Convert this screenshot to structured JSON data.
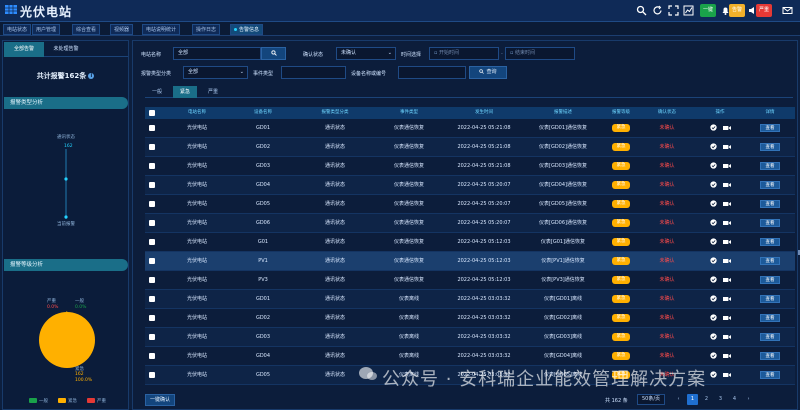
{
  "app": {
    "title": "光伏电站"
  },
  "top_buttons": {
    "b1": "一键",
    "b2": "告警",
    "b3": "严重"
  },
  "nav_tabs": [
    "电站状态",
    "用户管理",
    "综合查看",
    "视频器",
    "电站说明统计",
    "操作日志",
    "告警信息"
  ],
  "left": {
    "tabs": [
      "全部告警",
      "未处理告警"
    ],
    "total": "共计报警162条",
    "section1": "报警类型分析",
    "node_top": "通讯状态",
    "node_val": "162",
    "node_bottom": "当前报警",
    "section2": "报警等级分析",
    "pie_labels": {
      "top_left": "严重",
      "top_left_val": "0.0%",
      "top_right": "一般",
      "top_right_val": "0.0%",
      "bottom": "紧急",
      "bottom_val": "162",
      "bottom_pct": "100.0%"
    },
    "legend": [
      "一般",
      "紧急",
      "严重"
    ]
  },
  "filters": {
    "station_label": "电站名称",
    "station_value": "全部",
    "confirm_label": "确认状态",
    "confirm_value": "未确认",
    "time_label": "时间选择",
    "start_ph": "开始时间",
    "end_ph": "结束时间",
    "type_label": "报警类型分类",
    "type_value": "全部",
    "event_label": "事件类型",
    "device_label": "设备名称或编号",
    "query": "查询"
  },
  "subtabs": [
    "一般",
    "紧急",
    "严重"
  ],
  "table": {
    "headers": [
      "电站名称",
      "设备名称",
      "报警类型分类",
      "事件类型",
      "发生时间",
      "报警描述",
      "报警等级",
      "确认状态",
      "操作",
      "详情"
    ],
    "rows": [
      {
        "station": "光伏电站",
        "device": "GD01",
        "cat": "通讯状态",
        "event": "仪表通信恢复",
        "time": "2022-04-25 05:21:08",
        "desc": "仪表[GD01]通信恢复",
        "level": "紧急",
        "status": "未确认",
        "detail": "查看"
      },
      {
        "station": "光伏电站",
        "device": "GD02",
        "cat": "通讯状态",
        "event": "仪表通信恢复",
        "time": "2022-04-25 05:21:08",
        "desc": "仪表[GD02]通信恢复",
        "level": "紧急",
        "status": "未确认",
        "detail": "查看"
      },
      {
        "station": "光伏电站",
        "device": "GD03",
        "cat": "通讯状态",
        "event": "仪表通信恢复",
        "time": "2022-04-25 05:21:08",
        "desc": "仪表[GD03]通信恢复",
        "level": "紧急",
        "status": "未确认",
        "detail": "查看"
      },
      {
        "station": "光伏电站",
        "device": "GD04",
        "cat": "通讯状态",
        "event": "仪表通信恢复",
        "time": "2022-04-25 05:20:07",
        "desc": "仪表[GD04]通信恢复",
        "level": "紧急",
        "status": "未确认",
        "detail": "查看"
      },
      {
        "station": "光伏电站",
        "device": "GD05",
        "cat": "通讯状态",
        "event": "仪表通信恢复",
        "time": "2022-04-25 05:20:07",
        "desc": "仪表[GD05]通信恢复",
        "level": "紧急",
        "status": "未确认",
        "detail": "查看"
      },
      {
        "station": "光伏电站",
        "device": "GD06",
        "cat": "通讯状态",
        "event": "仪表通信恢复",
        "time": "2022-04-25 05:20:07",
        "desc": "仪表[GD06]通信恢复",
        "level": "紧急",
        "status": "未确认",
        "detail": "查看"
      },
      {
        "station": "光伏电站",
        "device": "G01",
        "cat": "通讯状态",
        "event": "仪表通信恢复",
        "time": "2022-04-25 05:12:03",
        "desc": "仪表[G01]通信恢复",
        "level": "紧急",
        "status": "未确认",
        "detail": "查看"
      },
      {
        "station": "光伏电站",
        "device": "PV1",
        "cat": "通讯状态",
        "event": "仪表通信恢复",
        "time": "2022-04-25 05:12:03",
        "desc": "仪表[PV1]通信恢复",
        "level": "紧急",
        "status": "未确认",
        "detail": "查看"
      },
      {
        "station": "光伏电站",
        "device": "PV3",
        "cat": "通讯状态",
        "event": "仪表通信恢复",
        "time": "2022-04-25 05:12:03",
        "desc": "仪表[PV3]通信恢复",
        "level": "紧急",
        "status": "未确认",
        "detail": "查看"
      },
      {
        "station": "光伏电站",
        "device": "GD01",
        "cat": "通讯状态",
        "event": "仪表离线",
        "time": "2022-04-25 03:03:32",
        "desc": "仪表[GD01]离线",
        "level": "紧急",
        "status": "未确认",
        "detail": "查看"
      },
      {
        "station": "光伏电站",
        "device": "GD02",
        "cat": "通讯状态",
        "event": "仪表离线",
        "time": "2022-04-25 03:03:32",
        "desc": "仪表[GD02]离线",
        "level": "紧急",
        "status": "未确认",
        "detail": "查看"
      },
      {
        "station": "光伏电站",
        "device": "GD03",
        "cat": "通讯状态",
        "event": "仪表离线",
        "time": "2022-04-25 03:03:32",
        "desc": "仪表[GD03]离线",
        "level": "紧急",
        "status": "未确认",
        "detail": "查看"
      },
      {
        "station": "光伏电站",
        "device": "GD04",
        "cat": "通讯状态",
        "event": "仪表离线",
        "time": "2022-04-25 03:03:32",
        "desc": "仪表[GD04]离线",
        "level": "紧急",
        "status": "未确认",
        "detail": "查看"
      },
      {
        "station": "光伏电站",
        "device": "GD05",
        "cat": "通讯状态",
        "event": "仪表离线",
        "time": "2022-04-25 03:03:32",
        "desc": "仪表[GD05]离线",
        "level": "紧急",
        "status": "未确认",
        "detail": "查看"
      }
    ]
  },
  "footer": {
    "confirm_btn": "一键确认",
    "total": "共 162 条",
    "page_size": "50条/页",
    "pages": [
      "1",
      "2",
      "3",
      "4"
    ],
    "active_page": "1"
  },
  "watermark": "公众号 · 安科瑞企业能效管理解决方案",
  "colors": {
    "accent": "#1a6e88",
    "level_urgent": "#ffb000",
    "status_red": "#ff4b4b",
    "pie": "#ffb000"
  }
}
